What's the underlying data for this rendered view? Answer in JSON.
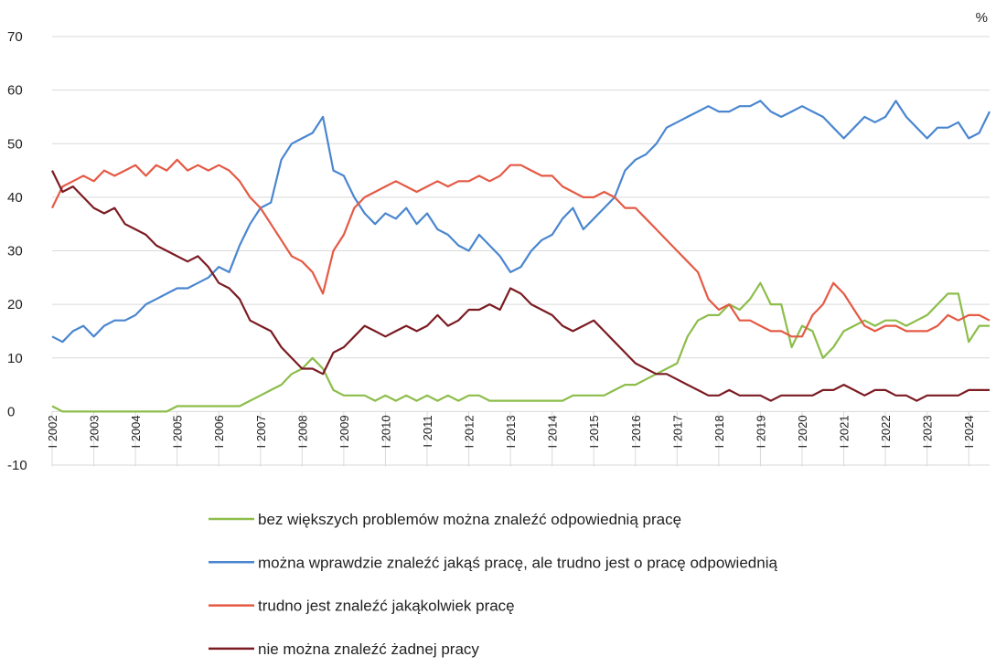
{
  "chart_data": {
    "type": "line",
    "unit": "%",
    "x": [
      2002,
      2002.25,
      2002.5,
      2002.75,
      2003,
      2003.25,
      2003.5,
      2003.75,
      2004,
      2004.25,
      2004.5,
      2004.75,
      2005,
      2005.25,
      2005.5,
      2005.75,
      2006,
      2006.25,
      2006.5,
      2006.75,
      2007,
      2007.25,
      2007.5,
      2007.75,
      2008,
      2008.25,
      2008.5,
      2008.75,
      2009,
      2009.25,
      2009.5,
      2009.75,
      2010,
      2010.25,
      2010.5,
      2010.75,
      2011,
      2011.25,
      2011.5,
      2011.75,
      2012,
      2012.25,
      2012.5,
      2012.75,
      2013,
      2013.25,
      2013.5,
      2013.75,
      2014,
      2014.25,
      2014.5,
      2014.75,
      2015,
      2015.25,
      2015.5,
      2015.75,
      2016,
      2016.25,
      2016.5,
      2016.75,
      2017,
      2017.25,
      2017.5,
      2017.75,
      2018,
      2018.25,
      2018.5,
      2018.75,
      2019,
      2019.25,
      2019.5,
      2019.75,
      2020,
      2020.25,
      2020.5,
      2020.75,
      2021,
      2021.25,
      2021.5,
      2021.75,
      2022,
      2022.25,
      2022.5,
      2022.75,
      2023,
      2023.25,
      2023.5,
      2023.75,
      2024,
      2024.25,
      2024.5
    ],
    "xlim": [
      2002,
      2024.5
    ],
    "xticks": [
      {
        "value": 2002,
        "label": "I 2002"
      },
      {
        "value": 2003,
        "label": "I 2003"
      },
      {
        "value": 2004,
        "label": "I 2004"
      },
      {
        "value": 2005,
        "label": "I 2005"
      },
      {
        "value": 2006,
        "label": "I 2006"
      },
      {
        "value": 2007,
        "label": "I 2007"
      },
      {
        "value": 2008,
        "label": "I 2008"
      },
      {
        "value": 2009,
        "label": "I 2009"
      },
      {
        "value": 2010,
        "label": "I 2010"
      },
      {
        "value": 2011,
        "label": "I 2011"
      },
      {
        "value": 2012,
        "label": "I 2012"
      },
      {
        "value": 2013,
        "label": "I 2013"
      },
      {
        "value": 2014,
        "label": "I 2014"
      },
      {
        "value": 2015,
        "label": "I 2015"
      },
      {
        "value": 2016,
        "label": "I 2016"
      },
      {
        "value": 2017,
        "label": "I 2017"
      },
      {
        "value": 2018,
        "label": "I 2018"
      },
      {
        "value": 2019,
        "label": "I 2019"
      },
      {
        "value": 2020,
        "label": "I 2020"
      },
      {
        "value": 2021,
        "label": "I 2021"
      },
      {
        "value": 2022,
        "label": "I 2022"
      },
      {
        "value": 2023,
        "label": "I 2023"
      },
      {
        "value": 2024,
        "label": "I 2024"
      }
    ],
    "ylim": [
      -10,
      70
    ],
    "yticks": [
      -10,
      0,
      10,
      20,
      30,
      40,
      50,
      60,
      70
    ],
    "grid": true,
    "series": [
      {
        "name": "bez większych problemów można znaleźć odpowiednią pracę",
        "color": "#8cbd4a",
        "values": [
          1,
          0,
          0,
          0,
          0,
          0,
          0,
          0,
          0,
          0,
          0,
          0,
          1,
          1,
          1,
          1,
          1,
          1,
          1,
          2,
          3,
          4,
          5,
          7,
          8,
          10,
          8,
          4,
          3,
          3,
          3,
          2,
          3,
          2,
          3,
          2,
          3,
          2,
          3,
          2,
          3,
          3,
          2,
          2,
          2,
          2,
          2,
          2,
          2,
          2,
          3,
          3,
          3,
          3,
          4,
          5,
          5,
          6,
          7,
          8,
          9,
          14,
          17,
          18,
          18,
          20,
          19,
          21,
          24,
          20,
          20,
          12,
          16,
          15,
          10,
          12,
          15,
          16,
          17,
          16,
          17,
          17,
          16,
          17,
          18,
          20,
          22,
          22,
          13,
          16,
          16
        ]
      },
      {
        "name": "można wprawdzie znaleźć jakąś pracę, ale trudno jest o pracę odpowiednią",
        "color": "#4a86d0",
        "values": [
          14,
          13,
          15,
          16,
          14,
          16,
          17,
          17,
          18,
          20,
          21,
          22,
          23,
          23,
          24,
          25,
          27,
          26,
          31,
          35,
          38,
          39,
          47,
          50,
          51,
          52,
          55,
          45,
          44,
          40,
          37,
          35,
          37,
          36,
          38,
          35,
          37,
          34,
          33,
          31,
          30,
          33,
          31,
          29,
          26,
          27,
          30,
          32,
          33,
          36,
          38,
          34,
          36,
          38,
          40,
          45,
          47,
          48,
          50,
          53,
          54,
          55,
          56,
          57,
          56,
          56,
          57,
          57,
          58,
          56,
          55,
          56,
          57,
          56,
          55,
          53,
          51,
          53,
          55,
          54,
          55,
          58,
          55,
          53,
          51,
          53,
          53,
          54,
          51,
          52,
          56
        ]
      },
      {
        "name": "trudno jest znaleźć jakąkolwiek pracę",
        "color": "#e45a45",
        "values": [
          38,
          42,
          43,
          44,
          43,
          45,
          44,
          45,
          46,
          44,
          46,
          45,
          47,
          45,
          46,
          45,
          46,
          45,
          43,
          40,
          38,
          35,
          32,
          29,
          28,
          26,
          22,
          30,
          33,
          38,
          40,
          41,
          42,
          43,
          42,
          41,
          42,
          43,
          42,
          43,
          43,
          44,
          43,
          44,
          46,
          46,
          45,
          44,
          44,
          42,
          41,
          40,
          40,
          41,
          40,
          38,
          38,
          36,
          34,
          32,
          30,
          28,
          26,
          21,
          19,
          20,
          17,
          17,
          16,
          15,
          15,
          14,
          14,
          18,
          20,
          24,
          22,
          19,
          16,
          15,
          16,
          16,
          15,
          15,
          15,
          16,
          18,
          17,
          18,
          18,
          17
        ]
      },
      {
        "name": "nie można znaleźć żadnej pracy",
        "color": "#7b1b22",
        "values": [
          45,
          41,
          42,
          40,
          38,
          37,
          38,
          35,
          34,
          33,
          31,
          30,
          29,
          28,
          29,
          27,
          24,
          23,
          21,
          17,
          16,
          15,
          12,
          10,
          8,
          8,
          7,
          11,
          12,
          14,
          16,
          15,
          14,
          15,
          16,
          15,
          16,
          18,
          16,
          17,
          19,
          19,
          20,
          19,
          23,
          22,
          20,
          19,
          18,
          16,
          15,
          16,
          17,
          15,
          13,
          11,
          9,
          8,
          7,
          7,
          6,
          5,
          4,
          3,
          3,
          4,
          3,
          3,
          3,
          2,
          3,
          3,
          3,
          3,
          4,
          4,
          5,
          4,
          3,
          4,
          4,
          3,
          3,
          2,
          3,
          3,
          3,
          3,
          4,
          4,
          4
        ]
      }
    ]
  }
}
